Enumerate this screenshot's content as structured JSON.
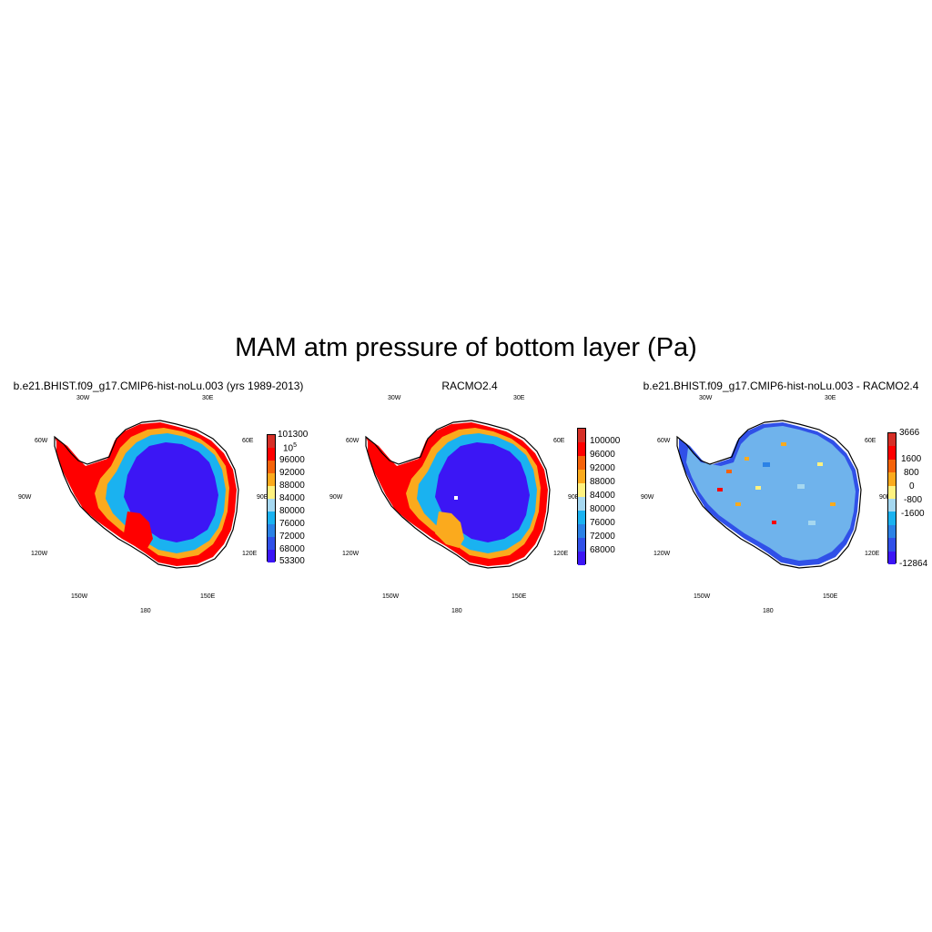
{
  "figure": {
    "title": "MAM atm pressure of bottom layer (Pa)"
  },
  "lon_labels": {
    "top_left": "30W",
    "top_right": "30E",
    "upper_left": "60W",
    "upper_right": "60E",
    "mid_left": "90W",
    "mid_right": "90E",
    "lower_left": "120W",
    "lower_right": "120E",
    "bottom_left": "150W",
    "bottom_right": "150E",
    "bottom": "180"
  },
  "panels": [
    {
      "title": "b.e21.BHIST.f09_g17.CMIP6-hist-noLu.003 (yrs 1989-2013)",
      "colorbar": {
        "colors": [
          "#d62f27",
          "#ff0000",
          "#f5630a",
          "#fbaa1d",
          "#fff280",
          "#a6d8f0",
          "#1ab2f0",
          "#2b82e6",
          "#3050e8",
          "#3c16f5"
        ],
        "labels": [
          "101300",
          "10^5",
          "96000",
          "92000",
          "88000",
          "84000",
          "80000",
          "76000",
          "72000",
          "68000",
          "53300"
        ]
      }
    },
    {
      "title": "RACMO2.4",
      "colorbar": {
        "colors": [
          "#d62f27",
          "#ff0000",
          "#f5630a",
          "#fbaa1d",
          "#fff280",
          "#a6d8f0",
          "#1ab2f0",
          "#2b82e6",
          "#3050e8",
          "#3c16f5"
        ],
        "labels": [
          "100000",
          "96000",
          "92000",
          "88000",
          "84000",
          "80000",
          "76000",
          "72000",
          "68000"
        ]
      }
    },
    {
      "title": "b.e21.BHIST.f09_g17.CMIP6-hist-noLu.003 - RACMO2.4",
      "colorbar": {
        "colors": [
          "#d62f27",
          "#ff0000",
          "#f5630a",
          "#fbaa1d",
          "#fff280",
          "#a6d8f0",
          "#1ab2f0",
          "#2b82e6",
          "#3050e8",
          "#3c16f5"
        ],
        "labels": [
          "3666",
          "1600",
          "800",
          "0",
          "-800",
          "-1600",
          "-12864"
        ]
      }
    }
  ]
}
